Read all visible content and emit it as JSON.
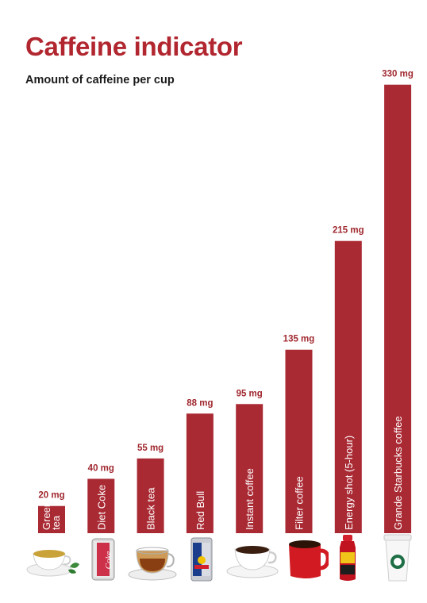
{
  "header": {
    "title": "Caffeine indicator",
    "subtitle": "Amount of caffeine per cup"
  },
  "colors": {
    "bar": "#aa2a34",
    "title": "#b1262f"
  },
  "chart_data": {
    "type": "bar",
    "title": "Caffeine indicator",
    "subtitle": "Amount of caffeine per cup",
    "categories": [
      "Green tea",
      "Diet Coke",
      "Black tea",
      "Red Bull",
      "Instant coffee",
      "Filter coffee",
      "Energy shot (5-hour)",
      "Grande Starbucks coffee"
    ],
    "values": [
      20,
      40,
      55,
      88,
      95,
      135,
      215,
      330
    ],
    "value_labels": [
      "20 mg",
      "40 mg",
      "55 mg",
      "88 mg",
      "95 mg",
      "135 mg",
      "215 mg",
      "330 mg"
    ],
    "unit": "mg",
    "grid": false,
    "icons": [
      "green-tea-cup-icon",
      "diet-coke-can-icon",
      "black-tea-glass-cup-icon",
      "red-bull-can-icon",
      "instant-coffee-cup-icon",
      "filter-coffee-mug-icon",
      "energy-shot-bottle-icon",
      "starbucks-cup-icon"
    ]
  }
}
